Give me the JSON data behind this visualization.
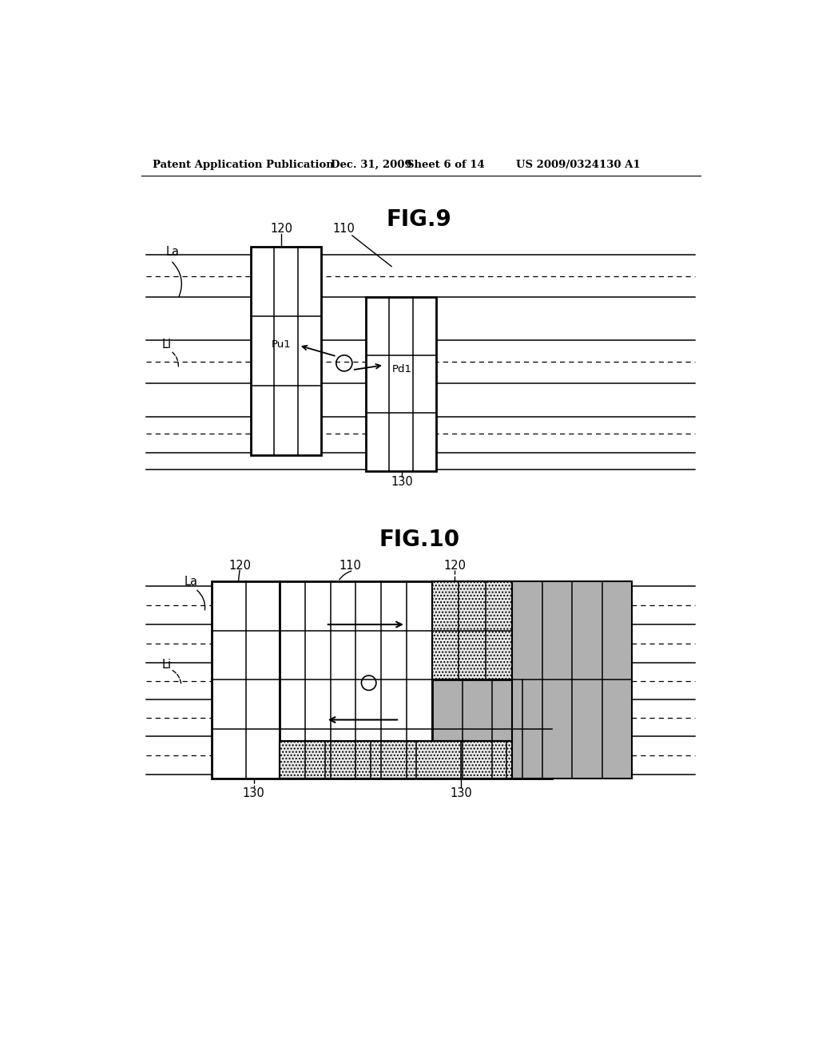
{
  "bg_color": "#ffffff",
  "header_text": "Patent Application Publication",
  "header_date": "Dec. 31, 2009",
  "header_sheet": "Sheet 6 of 14",
  "header_patent": "US 2009/0324130 A1",
  "fig9_title": "FIG.9",
  "fig10_title": "FIG.10",
  "line_color": "#000000",
  "grid_lw": 1.5,
  "outer_lw": 2.0
}
